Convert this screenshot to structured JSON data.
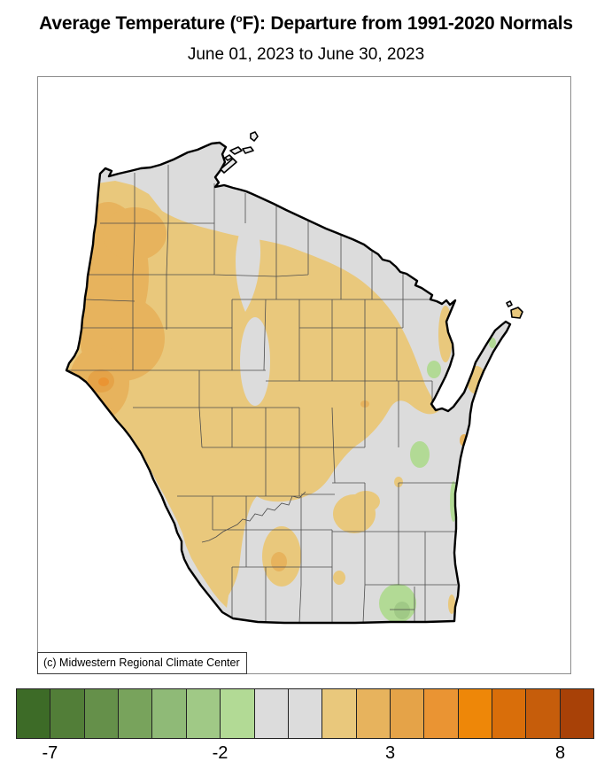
{
  "header": {
    "title_prefix": "Average Temperature (",
    "title_degree": "o",
    "title_suffix": "F): Departure from 1991-2020 Normals",
    "subtitle": "June 01, 2023 to June 30, 2023"
  },
  "map": {
    "attribution": "(c) Midwestern Regional Climate Center",
    "palette": {
      "water": "#ffffff",
      "frame_border": "#8c8c8c",
      "state_outline": "#000000",
      "county_line": "#4d4d4d",
      "island_fill": "#ececec",
      "near_normal": "#dcdcdc",
      "warm1": "#e9c87c",
      "warm2": "#e7b35d",
      "warm3": "#e5a348",
      "warm4": "#ea9433",
      "cool1": "#b2da95",
      "cool2": "#a0c986"
    }
  },
  "legend": {
    "colors": [
      "#3d6b27",
      "#527e38",
      "#65904a",
      "#78a35c",
      "#8fba77",
      "#a0c986",
      "#b2da95",
      "#dcdcdc",
      "#dcdcdc",
      "#e9c87c",
      "#e7b35d",
      "#e5a348",
      "#ea9433",
      "#ee8708",
      "#d96e0a",
      "#c65d0b",
      "#a84107"
    ],
    "ticks": [
      {
        "label": "-7",
        "boundary_index": 1
      },
      {
        "label": "-2",
        "boundary_index": 6
      },
      {
        "label": "3",
        "boundary_index": 11
      },
      {
        "label": "8",
        "boundary_index": 16
      }
    ]
  }
}
